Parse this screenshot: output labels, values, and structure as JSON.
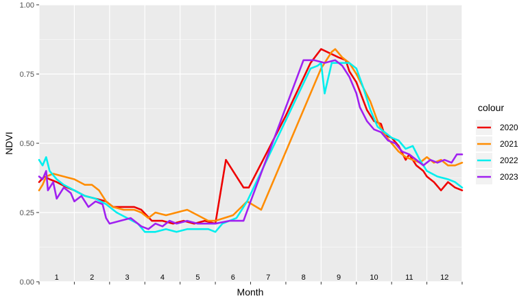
{
  "chart_data": {
    "type": "line",
    "xlabel": "Month",
    "ylabel": "NDVI",
    "ylim": [
      0,
      1
    ],
    "yticks": [
      "0.00",
      "0.25",
      "0.50",
      "0.75",
      "1.00"
    ],
    "month_labels": [
      "1",
      "2",
      "3",
      "4",
      "5",
      "6",
      "7",
      "8",
      "9",
      "10",
      "11",
      "12"
    ],
    "x_domain": [
      0,
      12
    ],
    "grid": true,
    "legend_title": "colour",
    "legend_position": "right",
    "series": [
      {
        "name": "2020",
        "color": "#ee0000",
        "points": [
          [
            0.0,
            0.36
          ],
          [
            0.15,
            0.38
          ],
          [
            0.3,
            0.37
          ],
          [
            0.5,
            0.36
          ],
          [
            0.8,
            0.34
          ],
          [
            1.0,
            0.33
          ],
          [
            1.3,
            0.31
          ],
          [
            1.6,
            0.3
          ],
          [
            1.9,
            0.29
          ],
          [
            2.1,
            0.27
          ],
          [
            2.4,
            0.27
          ],
          [
            2.7,
            0.27
          ],
          [
            2.9,
            0.26
          ],
          [
            3.2,
            0.22
          ],
          [
            3.5,
            0.22
          ],
          [
            3.8,
            0.21
          ],
          [
            4.1,
            0.22
          ],
          [
            4.4,
            0.21
          ],
          [
            4.7,
            0.22
          ],
          [
            5.0,
            0.21
          ],
          [
            5.3,
            0.44
          ],
          [
            5.8,
            0.34
          ],
          [
            5.95,
            0.34
          ],
          [
            7.0,
            0.6
          ],
          [
            7.7,
            0.79
          ],
          [
            8.0,
            0.84
          ],
          [
            8.5,
            0.81
          ],
          [
            8.7,
            0.8
          ],
          [
            8.8,
            0.76
          ],
          [
            9.0,
            0.72
          ],
          [
            9.3,
            0.62
          ],
          [
            9.5,
            0.58
          ],
          [
            9.7,
            0.57
          ],
          [
            9.8,
            0.53
          ],
          [
            10.0,
            0.52
          ],
          [
            10.2,
            0.49
          ],
          [
            10.4,
            0.44
          ],
          [
            10.5,
            0.46
          ],
          [
            10.7,
            0.42
          ],
          [
            10.9,
            0.4
          ],
          [
            11.0,
            0.38
          ],
          [
            11.2,
            0.36
          ],
          [
            11.4,
            0.33
          ],
          [
            11.6,
            0.36
          ],
          [
            11.8,
            0.34
          ],
          [
            12.0,
            0.33
          ]
        ]
      },
      {
        "name": "2021",
        "color": "#ff8c00",
        "points": [
          [
            0.0,
            0.33
          ],
          [
            0.1,
            0.35
          ],
          [
            0.2,
            0.38
          ],
          [
            0.4,
            0.39
          ],
          [
            0.7,
            0.38
          ],
          [
            1.0,
            0.37
          ],
          [
            1.3,
            0.35
          ],
          [
            1.5,
            0.35
          ],
          [
            1.7,
            0.33
          ],
          [
            1.9,
            0.29
          ],
          [
            2.1,
            0.27
          ],
          [
            2.4,
            0.26
          ],
          [
            2.7,
            0.26
          ],
          [
            2.9,
            0.25
          ],
          [
            3.1,
            0.23
          ],
          [
            3.3,
            0.25
          ],
          [
            3.6,
            0.24
          ],
          [
            3.9,
            0.25
          ],
          [
            4.2,
            0.26
          ],
          [
            4.5,
            0.24
          ],
          [
            4.8,
            0.22
          ],
          [
            5.0,
            0.22
          ],
          [
            5.5,
            0.24
          ],
          [
            5.9,
            0.29
          ],
          [
            6.3,
            0.26
          ],
          [
            8.0,
            0.77
          ],
          [
            8.3,
            0.83
          ],
          [
            8.4,
            0.84
          ],
          [
            8.6,
            0.81
          ],
          [
            8.8,
            0.79
          ],
          [
            9.0,
            0.75
          ],
          [
            9.2,
            0.7
          ],
          [
            9.4,
            0.65
          ],
          [
            9.6,
            0.58
          ],
          [
            9.8,
            0.53
          ],
          [
            10.0,
            0.5
          ],
          [
            10.2,
            0.47
          ],
          [
            10.4,
            0.45
          ],
          [
            10.6,
            0.44
          ],
          [
            10.8,
            0.43
          ],
          [
            11.0,
            0.45
          ],
          [
            11.2,
            0.43
          ],
          [
            11.4,
            0.44
          ],
          [
            11.6,
            0.42
          ],
          [
            11.8,
            0.42
          ],
          [
            12.0,
            0.43
          ]
        ]
      },
      {
        "name": "2022",
        "color": "#00eeee",
        "points": [
          [
            0.0,
            0.44
          ],
          [
            0.1,
            0.42
          ],
          [
            0.2,
            0.45
          ],
          [
            0.3,
            0.4
          ],
          [
            0.5,
            0.37
          ],
          [
            0.7,
            0.35
          ],
          [
            1.0,
            0.33
          ],
          [
            1.3,
            0.31
          ],
          [
            1.6,
            0.3
          ],
          [
            1.9,
            0.28
          ],
          [
            2.2,
            0.25
          ],
          [
            2.5,
            0.23
          ],
          [
            2.8,
            0.21
          ],
          [
            3.0,
            0.18
          ],
          [
            3.3,
            0.18
          ],
          [
            3.6,
            0.19
          ],
          [
            3.9,
            0.18
          ],
          [
            4.2,
            0.19
          ],
          [
            4.5,
            0.19
          ],
          [
            4.8,
            0.19
          ],
          [
            5.0,
            0.18
          ],
          [
            5.2,
            0.21
          ],
          [
            5.6,
            0.23
          ],
          [
            5.9,
            0.29
          ],
          [
            7.7,
            0.77
          ],
          [
            7.9,
            0.78
          ],
          [
            8.0,
            0.79
          ],
          [
            8.1,
            0.68
          ],
          [
            8.3,
            0.79
          ],
          [
            8.6,
            0.79
          ],
          [
            8.8,
            0.79
          ],
          [
            9.0,
            0.77
          ],
          [
            9.2,
            0.7
          ],
          [
            9.4,
            0.62
          ],
          [
            9.6,
            0.56
          ],
          [
            9.8,
            0.54
          ],
          [
            10.0,
            0.52
          ],
          [
            10.2,
            0.51
          ],
          [
            10.4,
            0.48
          ],
          [
            10.6,
            0.49
          ],
          [
            10.8,
            0.44
          ],
          [
            11.0,
            0.4
          ],
          [
            11.3,
            0.38
          ],
          [
            11.6,
            0.37
          ],
          [
            11.8,
            0.36
          ],
          [
            12.0,
            0.34
          ]
        ]
      },
      {
        "name": "2023",
        "color": "#a020f0",
        "points": [
          [
            0.0,
            0.38
          ],
          [
            0.1,
            0.37
          ],
          [
            0.2,
            0.4
          ],
          [
            0.25,
            0.33
          ],
          [
            0.4,
            0.36
          ],
          [
            0.5,
            0.3
          ],
          [
            0.7,
            0.34
          ],
          [
            0.9,
            0.32
          ],
          [
            1.0,
            0.29
          ],
          [
            1.2,
            0.31
          ],
          [
            1.4,
            0.27
          ],
          [
            1.6,
            0.29
          ],
          [
            1.8,
            0.28
          ],
          [
            1.9,
            0.23
          ],
          [
            2.0,
            0.21
          ],
          [
            2.3,
            0.22
          ],
          [
            2.6,
            0.23
          ],
          [
            2.9,
            0.2
          ],
          [
            3.1,
            0.19
          ],
          [
            3.3,
            0.21
          ],
          [
            3.5,
            0.2
          ],
          [
            3.7,
            0.22
          ],
          [
            3.9,
            0.21
          ],
          [
            4.2,
            0.22
          ],
          [
            4.5,
            0.21
          ],
          [
            4.7,
            0.21
          ],
          [
            5.0,
            0.21
          ],
          [
            5.4,
            0.22
          ],
          [
            5.8,
            0.22
          ],
          [
            6.0,
            0.29
          ],
          [
            7.5,
            0.8
          ],
          [
            7.8,
            0.8
          ],
          [
            8.1,
            0.79
          ],
          [
            8.4,
            0.8
          ],
          [
            8.6,
            0.78
          ],
          [
            8.8,
            0.74
          ],
          [
            9.0,
            0.68
          ],
          [
            9.1,
            0.63
          ],
          [
            9.3,
            0.58
          ],
          [
            9.5,
            0.55
          ],
          [
            9.7,
            0.54
          ],
          [
            9.9,
            0.51
          ],
          [
            10.1,
            0.5
          ],
          [
            10.3,
            0.47
          ],
          [
            10.5,
            0.46
          ],
          [
            10.7,
            0.44
          ],
          [
            10.9,
            0.42
          ],
          [
            11.1,
            0.44
          ],
          [
            11.3,
            0.43
          ],
          [
            11.5,
            0.44
          ],
          [
            11.7,
            0.43
          ],
          [
            11.85,
            0.46
          ],
          [
            12.0,
            0.46
          ]
        ]
      }
    ]
  }
}
